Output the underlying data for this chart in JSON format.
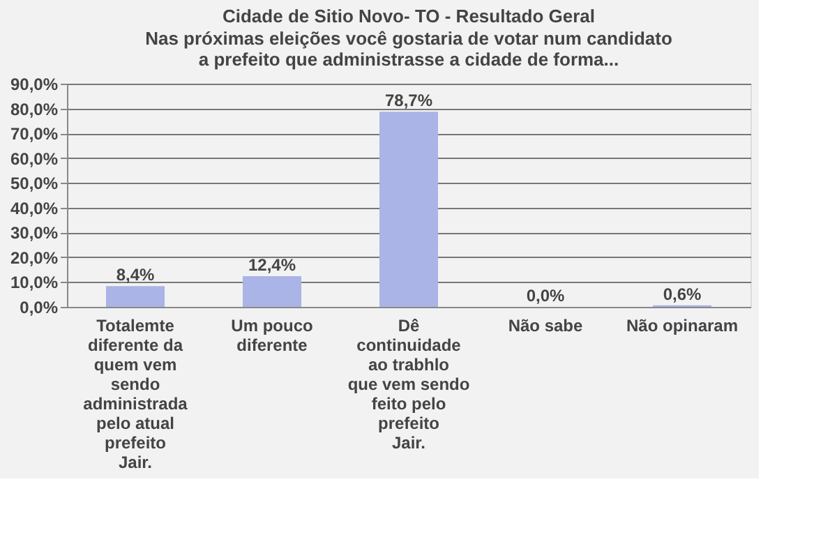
{
  "chart_data": {
    "type": "bar",
    "title": "Cidade de Sitio Novo- TO - Resultado Geral",
    "subtitle": "Nas próximas eleições você gostaria de votar num candidato a prefeito que administrasse a cidade de forma...",
    "categories": [
      "Totalemte diferente da quem vem sendo administrada pelo atual prefeito Jair.",
      "Um pouco diferente",
      "Dê continuidade ao trabhlo que vem sendo feito pelo prefeito Jair.",
      "Não sabe",
      "Não opinaram"
    ],
    "values": [
      8.4,
      12.4,
      78.7,
      0.0,
      0.6
    ],
    "value_labels": [
      "8,4%",
      "12,4%",
      "78,7%",
      "0,0%",
      "0,6%"
    ],
    "color": "#aab4e6",
    "ylim": [
      0,
      90
    ],
    "yticks": [
      {
        "value": 0,
        "label": "0,0%"
      },
      {
        "value": 10,
        "label": "10,0%"
      },
      {
        "value": 20,
        "label": "20,0%"
      },
      {
        "value": 30,
        "label": "30,0%"
      },
      {
        "value": 40,
        "label": "40,0%"
      },
      {
        "value": 50,
        "label": "50,0%"
      },
      {
        "value": 60,
        "label": "60,0%"
      },
      {
        "value": 70,
        "label": "70,0%"
      },
      {
        "value": 80,
        "label": "80,0%"
      },
      {
        "value": 90,
        "label": "90,0%"
      }
    ],
    "grid": "y"
  }
}
